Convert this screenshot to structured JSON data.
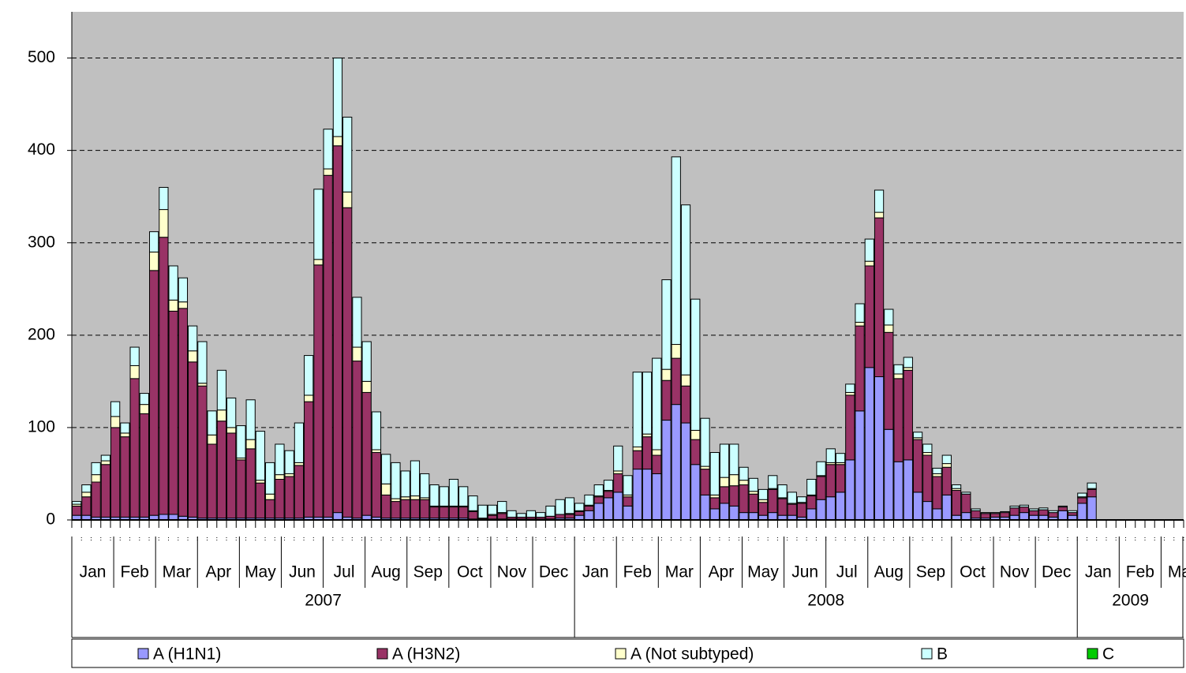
{
  "chart_data": {
    "type": "bar",
    "stacked": true,
    "categories": [
      null,
      null,
      null,
      null,
      null,
      null,
      null,
      null,
      null,
      null,
      null,
      null,
      null,
      null,
      null,
      null,
      null,
      null,
      null,
      null,
      null,
      null,
      null,
      null,
      null,
      null,
      null,
      null,
      null,
      null,
      null,
      null,
      null,
      null,
      null,
      null,
      null,
      null,
      null,
      null,
      null,
      null,
      null,
      null,
      null,
      null,
      null,
      null,
      null,
      null,
      null,
      null,
      null,
      null,
      null,
      null,
      null,
      null,
      null,
      null,
      null,
      null,
      null,
      null,
      null,
      null,
      null,
      null,
      null,
      null,
      null,
      null,
      null,
      null,
      null,
      null,
      null,
      null,
      null,
      null,
      null,
      null,
      null,
      null,
      null,
      null,
      null,
      null,
      null,
      null,
      null,
      null,
      null,
      null,
      null,
      null,
      null,
      null,
      null,
      null,
      null,
      null,
      null,
      null,
      null,
      null,
      null,
      null,
      null,
      null,
      null,
      null,
      null,
      null,
      null
    ],
    "years": [
      {
        "label": "2007",
        "months": [
          "Jan",
          "Feb",
          "Mar",
          "Apr",
          "May",
          "Jun",
          "Jul",
          "Aug",
          "Sep",
          "Oct",
          "Nov",
          "Dec"
        ]
      },
      {
        "label": "2008",
        "months": [
          "Jan",
          "Feb",
          "Mar",
          "Apr",
          "May",
          "Jun",
          "Jul",
          "Aug",
          "Sep",
          "Oct",
          "Nov",
          "Dec"
        ]
      },
      {
        "label": "2009",
        "months": [
          "Jan",
          "Feb",
          "Mar"
        ]
      }
    ],
    "ylim": [
      0,
      550
    ],
    "yticks": [
      0,
      100,
      200,
      300,
      400,
      500
    ],
    "grid": true,
    "series": [
      {
        "name": "A (H1N1)",
        "color": "#9999ff",
        "values": [
          5,
          5,
          3,
          3,
          3,
          3,
          3,
          3,
          5,
          6,
          6,
          4,
          3,
          2,
          2,
          2,
          2,
          2,
          2,
          2,
          2,
          2,
          2,
          2,
          3,
          3,
          3,
          8,
          3,
          2,
          5,
          3,
          2,
          2,
          2,
          2,
          2,
          2,
          2,
          2,
          2,
          1,
          1,
          1,
          1,
          1,
          1,
          1,
          1,
          1,
          2,
          2,
          5,
          10,
          18,
          24,
          30,
          15,
          55,
          55,
          50,
          108,
          125,
          105,
          60,
          27,
          12,
          18,
          15,
          8,
          8,
          5,
          8,
          5,
          5,
          3,
          12,
          22,
          25,
          30,
          65,
          118,
          165,
          155,
          98,
          63,
          65,
          30,
          20,
          12,
          27,
          5,
          8,
          2,
          2,
          3,
          3,
          5,
          8,
          5,
          5,
          3,
          10,
          5,
          18,
          25,
          null,
          null,
          null,
          null,
          null,
          null,
          null,
          null,
          null
        ]
      },
      {
        "name": "A (H3N2)",
        "color": "#993366",
        "values": [
          10,
          20,
          38,
          57,
          97,
          87,
          150,
          112,
          265,
          300,
          220,
          225,
          168,
          143,
          80,
          105,
          92,
          63,
          75,
          38,
          20,
          42,
          45,
          57,
          125,
          273,
          370,
          397,
          335,
          170,
          133,
          70,
          25,
          18,
          20,
          20,
          20,
          12,
          12,
          12,
          12,
          8,
          1,
          4,
          6,
          2,
          2,
          2,
          2,
          3,
          4,
          4,
          4,
          5,
          7,
          7,
          20,
          10,
          20,
          35,
          20,
          43,
          50,
          40,
          27,
          28,
          12,
          18,
          22,
          30,
          20,
          14,
          25,
          18,
          12,
          15,
          14,
          25,
          35,
          30,
          70,
          92,
          110,
          172,
          105,
          90,
          97,
          57,
          50,
          35,
          30,
          27,
          20,
          8,
          5,
          4,
          5,
          8,
          6,
          5,
          6,
          5,
          4,
          3,
          6,
          8,
          null,
          null,
          null,
          null,
          null,
          null,
          null,
          null,
          null
        ]
      },
      {
        "name": "A (Not subtyped)",
        "color": "#ffffcc",
        "values": [
          2,
          5,
          8,
          4,
          12,
          4,
          14,
          10,
          20,
          30,
          12,
          7,
          12,
          3,
          10,
          12,
          6,
          2,
          10,
          3,
          6,
          5,
          3,
          3,
          7,
          6,
          7,
          10,
          17,
          15,
          12,
          3,
          12,
          3,
          3,
          4,
          2,
          1,
          1,
          1,
          1,
          1,
          0,
          1,
          1,
          0,
          0,
          0,
          0,
          0,
          0,
          1,
          1,
          1,
          1,
          1,
          3,
          2,
          4,
          3,
          6,
          12,
          15,
          12,
          10,
          3,
          3,
          10,
          12,
          5,
          3,
          3,
          1,
          1,
          1,
          1,
          1,
          1,
          2,
          2,
          3,
          4,
          5,
          6,
          8,
          5,
          3,
          2,
          3,
          3,
          4,
          2,
          0,
          0,
          0,
          0,
          0,
          0,
          0,
          0,
          0,
          0,
          0,
          0,
          1,
          1,
          null,
          null,
          null,
          null,
          null,
          null,
          null,
          null,
          null
        ]
      },
      {
        "name": "B",
        "color": "#ccffff",
        "values": [
          3,
          8,
          13,
          6,
          16,
          11,
          20,
          12,
          22,
          24,
          37,
          26,
          27,
          45,
          26,
          43,
          32,
          35,
          43,
          53,
          34,
          33,
          25,
          43,
          43,
          76,
          43,
          85,
          81,
          54,
          43,
          41,
          32,
          39,
          28,
          38,
          26,
          23,
          21,
          29,
          21,
          16,
          14,
          10,
          12,
          7,
          4,
          7,
          5,
          11,
          16,
          17,
          8,
          11,
          12,
          11,
          27,
          21,
          81,
          67,
          99,
          97,
          203,
          184,
          142,
          52,
          46,
          36,
          33,
          14,
          14,
          11,
          14,
          14,
          12,
          6,
          17,
          15,
          15,
          10,
          9,
          20,
          24,
          24,
          17,
          10,
          11,
          6,
          9,
          6,
          9,
          4,
          2,
          2,
          1,
          1,
          1,
          2,
          2,
          2,
          2,
          2,
          1,
          2,
          4,
          6,
          null,
          null,
          null,
          null,
          null,
          null,
          null,
          null,
          null
        ]
      },
      {
        "name": "C",
        "color": "#00cc00",
        "values": [
          0,
          0,
          0,
          0,
          0,
          0,
          0,
          0,
          0,
          0,
          0,
          0,
          0,
          0,
          0,
          0,
          0,
          0,
          0,
          0,
          0,
          0,
          0,
          0,
          0,
          0,
          0,
          0,
          0,
          0,
          0,
          0,
          0,
          0,
          0,
          0,
          0,
          0,
          0,
          0,
          0,
          0,
          0,
          0,
          0,
          0,
          0,
          0,
          0,
          0,
          0,
          0,
          0,
          0,
          0,
          0,
          0,
          0,
          0,
          0,
          0,
          0,
          0,
          0,
          0,
          0,
          0,
          0,
          0,
          0,
          0,
          0,
          0,
          0,
          0,
          0,
          0,
          0,
          0,
          0,
          0,
          0,
          0,
          0,
          0,
          0,
          0,
          0,
          0,
          0,
          0,
          0,
          0,
          0,
          0,
          0,
          0,
          0,
          0,
          0,
          0,
          0,
          0,
          0,
          0,
          0,
          null,
          null,
          null,
          null,
          null,
          null,
          null,
          null,
          null
        ]
      }
    ]
  }
}
